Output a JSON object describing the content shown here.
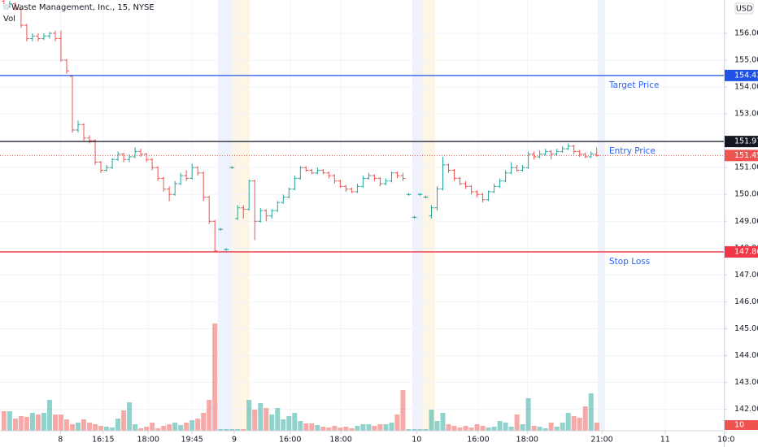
{
  "chart_data": {
    "type": "ohlc",
    "title": "Waste Management, Inc., 15, NYSE",
    "volume_title": "Vol",
    "currency": "USD",
    "up_color": "#26a69a",
    "down_color": "#ef5350",
    "grid": true,
    "xlim": [
      -0.7,
      126.3
    ],
    "xticks": [
      {
        "value": 9.9,
        "label": "8"
      },
      {
        "value": 17.4,
        "label": "16:15"
      },
      {
        "value": 25.3,
        "label": "18:00"
      },
      {
        "value": 33.0,
        "label": "19:45"
      },
      {
        "value": 40.4,
        "label": "9"
      },
      {
        "value": 50.2,
        "label": "16:00"
      },
      {
        "value": 59.1,
        "label": "18:00"
      },
      {
        "value": 72.4,
        "label": "10"
      },
      {
        "value": 83.2,
        "label": "16:00"
      },
      {
        "value": 91.8,
        "label": "18:00"
      },
      {
        "value": 104.9,
        "label": "21:00"
      },
      {
        "value": 116.0,
        "label": "11"
      },
      {
        "value": 126.7,
        "label": "10:0"
      }
    ],
    "ylim": [
      141.2,
      157.24
    ],
    "yticks": [
      {
        "value": 142,
        "label": "142.00"
      },
      {
        "value": 143,
        "label": "143.00"
      },
      {
        "value": 144,
        "label": "144.00"
      },
      {
        "value": 145,
        "label": "145.00"
      },
      {
        "value": 146,
        "label": "146.00"
      },
      {
        "value": 147,
        "label": "147.00"
      },
      {
        "value": 148,
        "label": "148.00"
      },
      {
        "value": 149,
        "label": "149.00"
      },
      {
        "value": 150,
        "label": "150.00"
      },
      {
        "value": 151,
        "label": "151.00"
      },
      {
        "value": 152,
        "label": "152.00"
      },
      {
        "value": 153,
        "label": "153.00"
      },
      {
        "value": 154,
        "label": "154.00"
      },
      {
        "value": 155,
        "label": "155.00"
      },
      {
        "value": 156,
        "label": "156.00"
      }
    ],
    "levels": [
      {
        "value": 154.43,
        "color": "#1e53e5",
        "label": "Target Price"
      },
      {
        "value": 151.97,
        "color": "#131722",
        "label": "Entry Price"
      },
      {
        "value": 147.86,
        "color": "#f23645",
        "label": "Stop Loss"
      }
    ],
    "open": [
      157.2,
      157.0,
      157.1,
      156.9,
      156.3,
      155.8,
      155.9,
      155.8,
      155.9,
      156.0,
      155.8,
      155.0,
      154.4,
      152.4,
      152.6,
      152.1,
      152.0,
      151.2,
      150.9,
      151.0,
      151.3,
      151.5,
      151.3,
      151.4,
      151.6,
      151.5,
      151.3,
      151.0,
      150.6,
      150.2,
      150.0,
      150.4,
      150.7,
      150.6,
      151.0,
      150.8,
      149.9,
      149.0,
      148.7,
      147.95,
      151.0,
      149.1,
      149.5,
      149.45,
      150.5,
      149.0,
      149.4,
      149.2,
      149.4,
      149.7,
      149.9,
      150.2,
      150.6,
      151.0,
      150.9,
      150.8,
      150.9,
      150.8,
      150.7,
      150.5,
      150.3,
      150.2,
      150.1,
      150.3,
      150.6,
      150.7,
      150.6,
      150.4,
      150.5,
      150.8,
      150.7,
      150.0,
      149.15,
      150.0,
      149.9,
      149.2,
      149.5,
      150.2,
      151.1,
      150.9,
      150.6,
      150.4,
      150.3,
      150.1,
      150.0,
      149.8,
      150.1,
      150.3,
      150.5,
      150.8,
      151.0,
      150.9,
      151.0,
      151.5,
      151.4,
      151.5,
      151.6,
      151.5,
      151.6,
      151.7,
      151.8,
      151.6,
      151.5,
      151.4,
      151.5
    ],
    "high": [
      157.25,
      157.2,
      157.15,
      156.95,
      156.35,
      156.0,
      156.0,
      156.0,
      156.05,
      156.1,
      156.1,
      155.05,
      154.4,
      152.75,
      152.65,
      152.2,
      152.05,
      151.25,
      151.1,
      151.35,
      151.6,
      151.55,
      151.5,
      151.75,
      151.7,
      151.55,
      151.35,
      151.05,
      150.65,
      150.3,
      150.5,
      150.8,
      150.9,
      151.15,
      151.05,
      150.85,
      149.95,
      149.05,
      148.75,
      148.0,
      151.05,
      149.6,
      149.6,
      150.55,
      150.55,
      149.5,
      149.45,
      149.45,
      149.75,
      150.0,
      150.25,
      150.7,
      151.05,
      151.05,
      150.95,
      151.0,
      150.95,
      150.85,
      150.75,
      150.55,
      150.35,
      150.25,
      150.4,
      150.7,
      150.8,
      150.75,
      150.65,
      150.6,
      150.85,
      150.85,
      150.8,
      150.05,
      149.2,
      150.05,
      149.95,
      149.6,
      150.3,
      151.4,
      151.15,
      150.95,
      150.65,
      150.5,
      150.35,
      150.15,
      150.05,
      150.15,
      150.4,
      150.6,
      150.9,
      151.2,
      151.1,
      151.1,
      151.6,
      151.6,
      151.65,
      151.7,
      151.65,
      151.7,
      151.8,
      151.9,
      151.85,
      151.65,
      151.55,
      151.6,
      151.75
    ],
    "low": [
      156.95,
      156.95,
      156.85,
      156.2,
      155.7,
      155.7,
      155.7,
      155.75,
      155.8,
      155.7,
      154.95,
      154.5,
      152.3,
      152.3,
      152.0,
      151.9,
      151.1,
      150.8,
      150.85,
      150.95,
      151.25,
      151.2,
      151.2,
      151.35,
      151.4,
      151.2,
      150.9,
      150.5,
      150.1,
      149.75,
      149.95,
      150.35,
      150.5,
      150.55,
      150.7,
      149.75,
      148.9,
      147.86,
      148.65,
      147.9,
      150.95,
      149.05,
      149.1,
      149.4,
      148.3,
      148.95,
      149.0,
      149.1,
      149.35,
      149.65,
      149.85,
      150.15,
      150.55,
      150.85,
      150.75,
      150.75,
      150.75,
      150.6,
      150.4,
      150.25,
      150.1,
      150.05,
      150.05,
      150.25,
      150.55,
      150.5,
      150.3,
      150.35,
      150.45,
      150.6,
      150.5,
      149.95,
      149.1,
      149.95,
      149.85,
      149.1,
      149.4,
      150.15,
      150.8,
      150.5,
      150.35,
      150.2,
      150.0,
      149.9,
      149.7,
      149.75,
      150.05,
      150.25,
      150.45,
      150.75,
      150.85,
      150.85,
      150.95,
      151.3,
      151.35,
      151.45,
      151.3,
      151.45,
      151.55,
      151.65,
      151.5,
      151.4,
      151.35,
      151.35,
      151.4
    ],
    "close": [
      157.0,
      157.1,
      156.9,
      156.3,
      155.8,
      155.9,
      155.8,
      155.9,
      156.0,
      155.8,
      155.0,
      154.6,
      152.4,
      152.6,
      152.1,
      152.0,
      151.2,
      150.9,
      151.0,
      151.3,
      151.5,
      151.3,
      151.4,
      151.6,
      151.5,
      151.3,
      151.0,
      150.6,
      150.2,
      150.0,
      150.4,
      150.7,
      150.6,
      151.0,
      150.8,
      149.9,
      149.0,
      147.9,
      148.7,
      147.95,
      151.0,
      149.5,
      149.45,
      150.5,
      149.0,
      149.4,
      149.2,
      149.4,
      149.7,
      149.9,
      150.2,
      150.6,
      151.0,
      150.9,
      150.8,
      150.9,
      150.8,
      150.7,
      150.5,
      150.3,
      150.2,
      150.1,
      150.3,
      150.6,
      150.7,
      150.6,
      150.4,
      150.5,
      150.8,
      150.7,
      150.6,
      150.0,
      149.15,
      150.0,
      149.9,
      149.5,
      150.2,
      151.1,
      150.9,
      150.6,
      150.4,
      150.3,
      150.1,
      150.0,
      149.8,
      150.1,
      150.3,
      150.5,
      150.8,
      151.0,
      150.9,
      151.0,
      151.5,
      151.4,
      151.5,
      151.6,
      151.5,
      151.6,
      151.7,
      151.8,
      151.6,
      151.5,
      151.4,
      151.5,
      151.45
    ],
    "volume": [
      24,
      24,
      15,
      18,
      17,
      22,
      20,
      22,
      38,
      20,
      20,
      14,
      8,
      10,
      14,
      10,
      8,
      6,
      5,
      4,
      15,
      25,
      35,
      8,
      3,
      5,
      10,
      3,
      6,
      8,
      10,
      7,
      10,
      13,
      15,
      22,
      38,
      132,
      2,
      2,
      2,
      2,
      2,
      38,
      26,
      34,
      28,
      20,
      28,
      14,
      18,
      22,
      12,
      9,
      9,
      7,
      5,
      4,
      6,
      4,
      5,
      3,
      6,
      8,
      8,
      6,
      8,
      8,
      10,
      20,
      50,
      2,
      2,
      2,
      2,
      26,
      12,
      22,
      8,
      6,
      4,
      6,
      4,
      8,
      6,
      4,
      5,
      12,
      10,
      5,
      20,
      8,
      40,
      6,
      5,
      3,
      10,
      5,
      10,
      22,
      18,
      16,
      30,
      46,
      10
    ]
  }
}
